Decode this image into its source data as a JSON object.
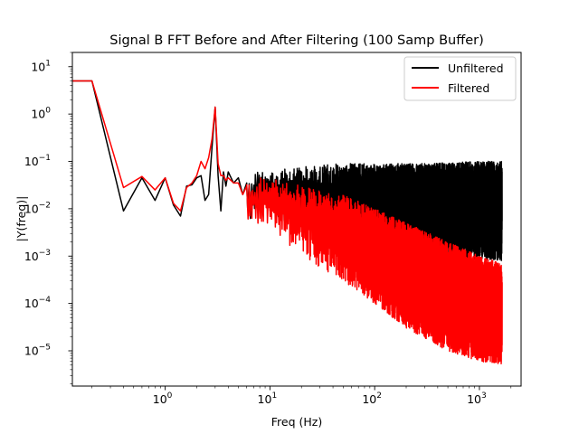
{
  "chart_data": {
    "type": "line",
    "title": "Signal B FFT Before and After Filtering (100 Samp Buffer)",
    "xlabel": "Freq (Hz)",
    "ylabel": "|Y(freq)|",
    "xscale": "log",
    "yscale": "log",
    "xlim": [
      0.13,
      2500
    ],
    "ylim": [
      1.8e-06,
      20
    ],
    "x_ticks": [
      {
        "value": 1,
        "base": "10",
        "exp": "0"
      },
      {
        "value": 10,
        "base": "10",
        "exp": "1"
      },
      {
        "value": 100,
        "base": "10",
        "exp": "2"
      },
      {
        "value": 1000,
        "base": "10",
        "exp": "3"
      }
    ],
    "y_ticks": [
      {
        "value": 1e-05,
        "base": "10",
        "exp": "−5"
      },
      {
        "value": 0.0001,
        "base": "10",
        "exp": "−4"
      },
      {
        "value": 0.001,
        "base": "10",
        "exp": "−3"
      },
      {
        "value": 0.01,
        "base": "10",
        "exp": "−2"
      },
      {
        "value": 0.1,
        "base": "10",
        "exp": "−1"
      },
      {
        "value": 1,
        "base": "10",
        "exp": "0"
      },
      {
        "value": 10,
        "base": "10",
        "exp": "1"
      }
    ],
    "grid": false,
    "legend_position": "top-right",
    "series": [
      {
        "name": "Unfiltered",
        "color": "#000000",
        "x": [
          0.13,
          0.2,
          0.4,
          0.6,
          0.8,
          1.0,
          1.2,
          1.4,
          1.6,
          1.8,
          2.0,
          2.2,
          2.4,
          2.6,
          2.8,
          3.0,
          3.2,
          3.4,
          3.6,
          3.8,
          4.0,
          4.5,
          5.0,
          5.5,
          6.0,
          7.0,
          8.0,
          9.0,
          10,
          12,
          15,
          20,
          30,
          40,
          50,
          70,
          100,
          150,
          200,
          300,
          500,
          700,
          1000,
          1300,
          1650
        ],
        "y": [
          5,
          5,
          0.009,
          0.045,
          0.015,
          0.045,
          0.012,
          0.007,
          0.03,
          0.032,
          0.045,
          0.05,
          0.015,
          0.02,
          0.2,
          1.4,
          0.05,
          0.009,
          0.06,
          0.03,
          0.06,
          0.035,
          0.045,
          0.02,
          0.035,
          0.015,
          0.05,
          0.02,
          0.035,
          0.045,
          0.04,
          0.045,
          0.04,
          0.035,
          0.03,
          0.03,
          0.035,
          0.035,
          0.03,
          0.03,
          0.03,
          0.03,
          0.035,
          0.035,
          0.035
        ],
        "noise_band": [
          [
            6,
            0.005,
            0.06
          ],
          [
            10,
            0.006,
            0.07
          ],
          [
            20,
            0.004,
            0.08
          ],
          [
            50,
            0.003,
            0.09
          ],
          [
            100,
            0.002,
            0.09
          ],
          [
            300,
            0.001,
            0.09
          ],
          [
            1000,
            0.0008,
            0.1
          ],
          [
            1650,
            0.0008,
            0.1
          ]
        ]
      },
      {
        "name": "Filtered",
        "color": "#ff0000",
        "x": [
          0.13,
          0.2,
          0.4,
          0.6,
          0.8,
          1.0,
          1.2,
          1.4,
          1.6,
          1.8,
          2.0,
          2.2,
          2.4,
          2.6,
          2.8,
          3.0,
          3.2,
          3.4,
          3.6,
          3.8,
          4.0,
          4.5,
          5.0,
          5.5,
          6.0,
          7.0,
          8.0,
          9.0,
          10,
          12,
          15,
          20,
          30,
          40,
          50,
          70,
          100,
          150,
          200,
          300,
          500,
          700,
          1000,
          1300,
          1650
        ],
        "y": [
          5,
          5,
          0.028,
          0.048,
          0.025,
          0.045,
          0.013,
          0.009,
          0.028,
          0.035,
          0.05,
          0.1,
          0.07,
          0.12,
          0.3,
          1.4,
          0.09,
          0.05,
          0.05,
          0.04,
          0.045,
          0.035,
          0.035,
          0.02,
          0.03,
          0.02,
          0.03,
          0.02,
          0.03,
          0.025,
          0.02,
          0.012,
          0.006,
          0.004,
          0.003,
          0.002,
          0.0015,
          0.001,
          0.0007,
          0.0005,
          0.0003,
          0.0002,
          0.00015,
          0.0001,
          0.0001
        ],
        "noise_band": [
          [
            6,
            0.005,
            0.05
          ],
          [
            10,
            0.004,
            0.05
          ],
          [
            20,
            0.001,
            0.03
          ],
          [
            50,
            0.0003,
            0.02
          ],
          [
            100,
            0.0001,
            0.01
          ],
          [
            200,
            3e-05,
            0.005
          ],
          [
            500,
            1e-05,
            0.002
          ],
          [
            1000,
            6e-06,
            0.001
          ],
          [
            1650,
            5e-06,
            0.0007
          ]
        ]
      }
    ]
  }
}
